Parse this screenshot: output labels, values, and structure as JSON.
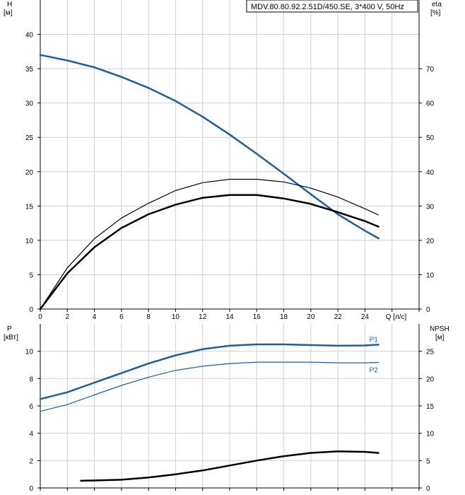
{
  "chart_data": [
    {
      "type": "line",
      "title": "MDV.80.80.92.2.51D/450.SE, 3*400 V, 50Hz",
      "xlabel": "Q [л/с]",
      "ylabel_left": [
        "H",
        "[м]"
      ],
      "ylabel_right": [
        "eta",
        "[%]"
      ],
      "xlim": [
        0,
        28
      ],
      "ylim_left": [
        0,
        45
      ],
      "ylim_right": [
        0,
        90
      ],
      "grid": true,
      "x_ticks": [
        "0",
        "2",
        "4",
        "6",
        "8",
        "10",
        "12",
        "14",
        "16",
        "18",
        "20",
        "22",
        "24"
      ],
      "y_ticks_left": [
        "0",
        "5",
        "10",
        "15",
        "20",
        "25",
        "30",
        "35",
        "40"
      ],
      "y_ticks_right": [
        "0",
        "10",
        "20",
        "30",
        "40",
        "50",
        "60",
        "70"
      ],
      "series": [
        {
          "axis": "left",
          "color": "#1f5f99",
          "width": 2.5,
          "x": [
            0,
            2,
            4,
            6,
            8,
            10,
            12,
            14,
            16,
            18,
            20,
            22,
            24,
            25
          ],
          "y": [
            37.0,
            36.2,
            35.2,
            33.8,
            32.2,
            30.3,
            28.0,
            25.4,
            22.6,
            19.7,
            16.7,
            13.8,
            11.4,
            10.3
          ]
        },
        {
          "axis": "left",
          "color": "#000000",
          "width": 2.5,
          "x": [
            0,
            2,
            4,
            6,
            8,
            10,
            12,
            14,
            16,
            18,
            20,
            22,
            24,
            25
          ],
          "y": [
            0,
            5.2,
            9.0,
            11.8,
            13.8,
            15.2,
            16.2,
            16.6,
            16.6,
            16.1,
            15.3,
            14.1,
            12.8,
            12.0
          ]
        },
        {
          "axis": "right",
          "color": "#000000",
          "width": 1.2,
          "x": [
            0,
            2,
            4,
            6,
            8,
            10,
            12,
            14,
            16,
            18,
            20,
            22,
            24,
            25
          ],
          "y": [
            0,
            12.0,
            20.5,
            26.5,
            30.8,
            34.5,
            36.8,
            37.8,
            37.8,
            37.0,
            35.2,
            32.6,
            29.2,
            27.4
          ]
        }
      ]
    },
    {
      "type": "line",
      "xlim": [
        0,
        28
      ],
      "ylabel_left": [
        "P",
        "[кВт]"
      ],
      "ylabel_right": [
        "NPSH",
        "[м]"
      ],
      "ylim_left": [
        0,
        12
      ],
      "ylim_right": [
        0,
        30
      ],
      "grid": true,
      "y_ticks_left": [
        "0",
        "2",
        "4",
        "6",
        "8",
        "10"
      ],
      "y_ticks_right": [
        "0",
        "5",
        "10",
        "15",
        "20",
        "25"
      ],
      "series": [
        {
          "name": "P1",
          "axis": "left",
          "color": "#1f5f99",
          "width": 2.5,
          "x": [
            0,
            2,
            4,
            6,
            8,
            10,
            12,
            14,
            16,
            18,
            20,
            22,
            24,
            25
          ],
          "y": [
            6.5,
            7.0,
            7.7,
            8.4,
            9.1,
            9.7,
            10.15,
            10.4,
            10.5,
            10.5,
            10.45,
            10.4,
            10.42,
            10.48
          ]
        },
        {
          "name": "P2",
          "axis": "left",
          "color": "#1f5f99",
          "width": 1.2,
          "x": [
            0,
            2,
            4,
            6,
            8,
            10,
            12,
            14,
            16,
            18,
            20,
            22,
            24,
            25
          ],
          "y": [
            5.6,
            6.1,
            6.8,
            7.5,
            8.1,
            8.6,
            8.9,
            9.1,
            9.2,
            9.2,
            9.2,
            9.15,
            9.15,
            9.18
          ]
        },
        {
          "axis": "right",
          "color": "#000000",
          "width": 2.5,
          "x": [
            3,
            6,
            8,
            10,
            12,
            14,
            16,
            18,
            20,
            22,
            24,
            25
          ],
          "y": [
            1.3,
            1.5,
            1.9,
            2.5,
            3.2,
            4.1,
            5.0,
            5.8,
            6.4,
            6.7,
            6.6,
            6.4
          ]
        }
      ]
    }
  ]
}
